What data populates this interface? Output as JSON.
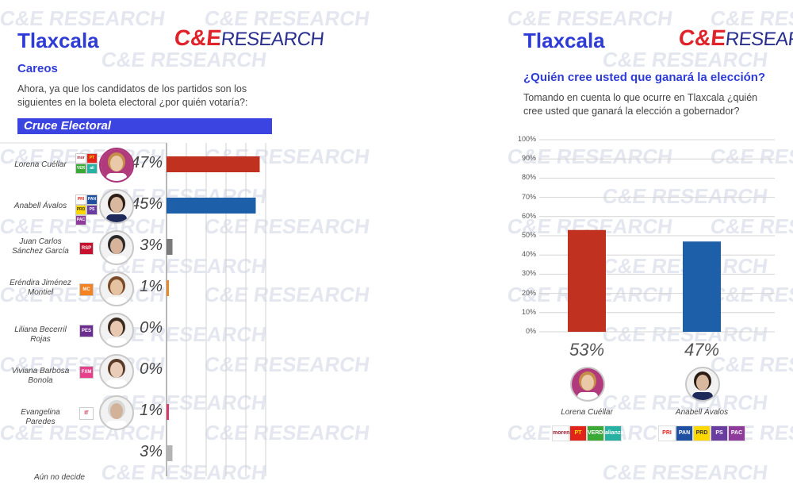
{
  "watermark": "C&E RESEARCH",
  "logo": {
    "ce": "C&E",
    "research": "RESEARCH"
  },
  "left": {
    "title": "Tlaxcala",
    "subtitle": "Careos",
    "question": "Ahora, ya que los candidatos de los partidos son los siguientes en la boleta electoral ¿por quién votaría?:",
    "banner": "Cruce Electoral"
  },
  "right": {
    "title": "Tlaxcala",
    "subtitle": "¿Quién cree usted que ganará la elección?",
    "question": "Tomando en cuenta lo que ocurre en Tlaxcala ¿quién cree usted que ganará la elección a gobernador?"
  },
  "colors": {
    "red": "#c0321f",
    "blue": "#1d5fa8",
    "gray": "#7a7a7a",
    "orange": "#e98b2a",
    "pink": "#d73c6b",
    "lightgray": "#b4b4b4"
  },
  "chart_data": [
    {
      "type": "bar",
      "orientation": "horizontal",
      "categories": [
        "Lorena Cuéllar",
        "Anabell Ávalos",
        "Juan Carlos Sánchez García",
        "Eréndira Jiménez Montiel",
        "Liliana Becerril Rojas",
        "Viviana Barbosa Bonola",
        "Evangelina Paredes",
        "Aún no decide"
      ],
      "category_lines": [
        [
          "Lorena Cuéllar"
        ],
        [
          "Anabell Ávalos"
        ],
        [
          "Juan Carlos",
          "Sánchez García"
        ],
        [
          "Eréndira Jiménez",
          "Montiel"
        ],
        [
          "Liliana Becerril Rojas"
        ],
        [
          "Viviana Barbosa Bonola"
        ],
        [
          "Evangelina Paredes"
        ],
        [
          "Aún no decide"
        ]
      ],
      "values": [
        47,
        45,
        3,
        1,
        0,
        0,
        1,
        3
      ],
      "labels": [
        "47%",
        "45%",
        "3%",
        "1%",
        "0%",
        "0%",
        "1%",
        "3%"
      ],
      "bar_colors": [
        "#c0321f",
        "#1d5fa8",
        "#7a7a7a",
        "#e98b2a",
        "#7a7a7a",
        "#7a7a7a",
        "#d73c6b",
        "#b4b4b4"
      ],
      "xlim": [
        0,
        50
      ],
      "grid": true
    },
    {
      "type": "bar",
      "categories": [
        "Lorena Cuéllar",
        "Anabell Ávalos"
      ],
      "values": [
        53,
        47
      ],
      "labels": [
        "53%",
        "47%"
      ],
      "bar_colors": [
        "#c0321f",
        "#1d5fa8"
      ],
      "yticks": [
        "100%",
        "90%",
        "80%",
        "70%",
        "60%",
        "50%",
        "40%",
        "30%",
        "20%",
        "10%",
        "0%"
      ],
      "ylim": [
        0,
        100
      ],
      "grid": true
    }
  ],
  "parties": {
    "lorena": [
      {
        "label": "morena",
        "color": "#ffffff",
        "text": "#9b1b30"
      },
      {
        "label": "PT",
        "color": "#e2231a",
        "text": "#ffe600"
      },
      {
        "label": "VERDE",
        "color": "#3aa935",
        "text": "#ffffff"
      },
      {
        "label": "alianza",
        "color": "#27b1a3",
        "text": "#ffffff"
      }
    ],
    "anabell": [
      {
        "label": "PRI",
        "color": "#ffffff",
        "text": "#e2231a"
      },
      {
        "label": "PAN",
        "color": "#1f4fa0",
        "text": "#ffffff"
      },
      {
        "label": "PRD",
        "color": "#ffd800",
        "text": "#333333"
      },
      {
        "label": "PS",
        "color": "#6a3da1",
        "text": "#ffffff"
      },
      {
        "label": "PAC",
        "color": "#8e3b9b",
        "text": "#ffffff"
      }
    ],
    "juan": [
      {
        "label": "RSP",
        "color": "#c8102e",
        "text": "#ffffff"
      }
    ],
    "erendira": [
      {
        "label": "MC",
        "color": "#f58220",
        "text": "#ffffff"
      }
    ],
    "liliana": [
      {
        "label": "PES",
        "color": "#6c2d91",
        "text": "#ffffff"
      }
    ],
    "viviana": [
      {
        "label": "FXM",
        "color": "#e8418c",
        "text": "#ffffff"
      }
    ],
    "evangelina": [
      {
        "label": "IT",
        "color": "#ffffff",
        "text": "#c8102e"
      }
    ]
  }
}
